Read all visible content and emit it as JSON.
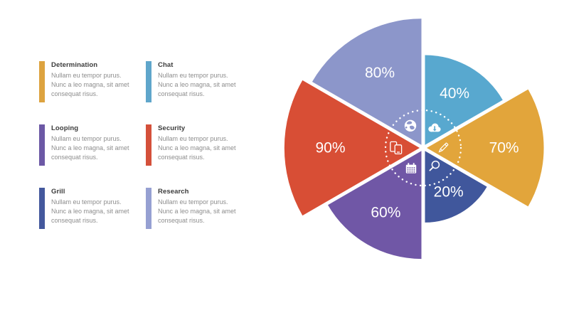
{
  "legend": {
    "items": [
      {
        "title": "Determination",
        "color": "#DDA33F",
        "lines": [
          "Nullam eu tempor purus.",
          "Nunc a leo magna, sit amet",
          "consequat risus."
        ]
      },
      {
        "title": "Chat",
        "color": "#5FA6CB",
        "lines": [
          "Nullam eu tempor purus.",
          "Nunc a leo magna, sit amet",
          "consequat risus."
        ]
      },
      {
        "title": "Looping",
        "color": "#6C58A5",
        "lines": [
          "Nullam eu tempor purus.",
          "Nunc a leo magna, sit amet",
          "consequat risus."
        ]
      },
      {
        "title": "Security",
        "color": "#D4503A",
        "lines": [
          "Nullam eu tempor purus.",
          "Nunc a leo magna, sit amet",
          "consequat risus."
        ]
      },
      {
        "title": "Grill",
        "color": "#44589D",
        "lines": [
          "Nullam eu tempor purus.",
          "Nunc a leo magna, sit amet",
          "consequat risus."
        ]
      },
      {
        "title": "Research",
        "color": "#96A0D2",
        "lines": [
          "Nullam eu tempor purus.",
          "Nunc a leo magna, sit amet",
          "consequat risus."
        ]
      }
    ]
  },
  "chart_data": {
    "type": "pie",
    "variant": "exploded-rose",
    "unit": "%",
    "label_color": "#ffffff",
    "center_icons_color": "#ffffff",
    "legend_position": "left",
    "segments": [
      {
        "name": "Research",
        "value": 80,
        "color": "#8C96CA",
        "icon": "globe-icon",
        "direction_deg": 120
      },
      {
        "name": "Chat",
        "value": 40,
        "color": "#58A8CF",
        "icon": "cloud-download-icon",
        "direction_deg": 60
      },
      {
        "name": "Determination",
        "value": 70,
        "color": "#E2A53B",
        "icon": "pencil-icon",
        "direction_deg": 0
      },
      {
        "name": "Grill",
        "value": 20,
        "color": "#40579C",
        "icon": "search-icon",
        "direction_deg": -60
      },
      {
        "name": "Looping",
        "value": 60,
        "color": "#7057A6",
        "icon": "calendar-icon",
        "direction_deg": -120
      },
      {
        "name": "Security",
        "value": 90,
        "color": "#D84E35",
        "icon": "devices-icon",
        "direction_deg": 180
      }
    ]
  }
}
